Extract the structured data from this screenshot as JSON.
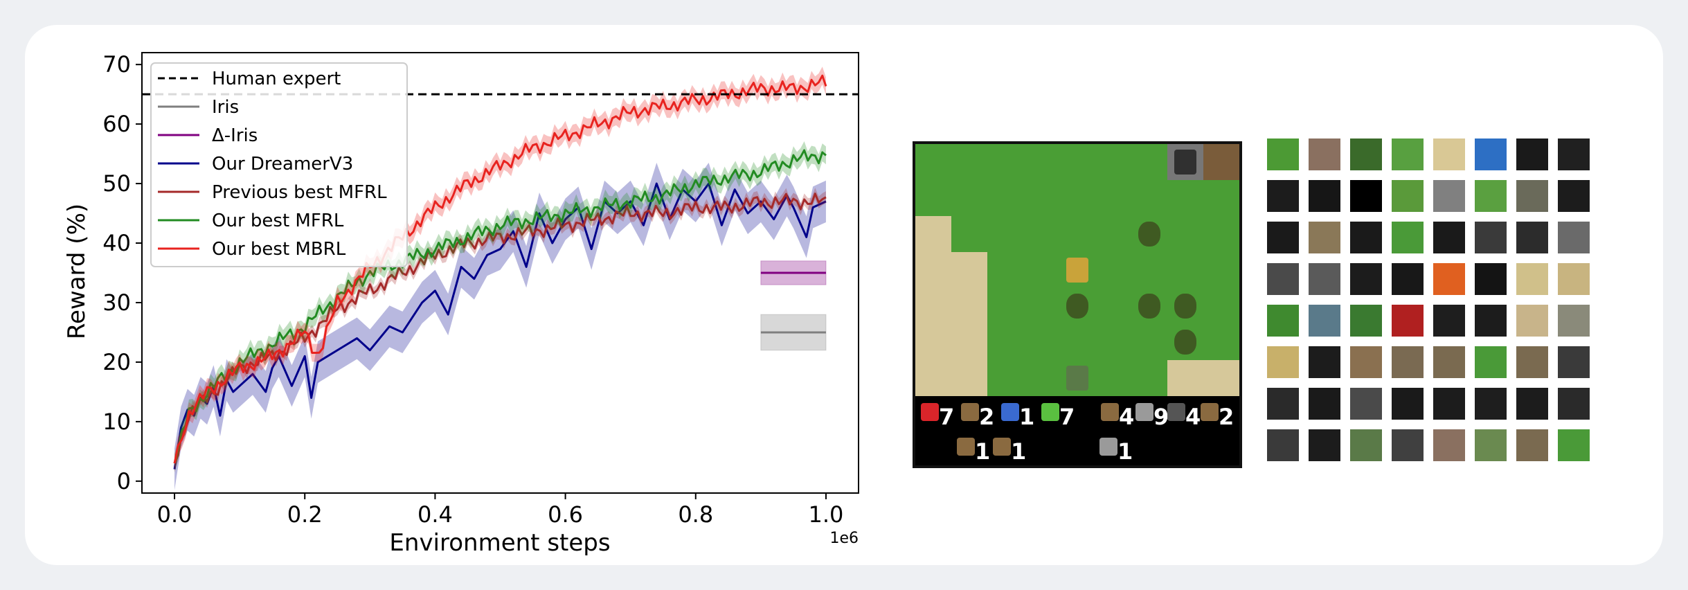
{
  "chart_data": {
    "type": "line",
    "title": "",
    "xlabel": "Environment steps",
    "ylabel": "Reward (%)",
    "x_multiplier_label": "1e6",
    "xlim": [
      -0.05,
      1.05
    ],
    "ylim": [
      -2,
      72
    ],
    "xticks": [
      0.0,
      0.2,
      0.4,
      0.6,
      0.8,
      1.0
    ],
    "xtick_labels": [
      "0.0",
      "0.2",
      "0.4",
      "0.6",
      "0.8",
      "1.0"
    ],
    "yticks": [
      0,
      10,
      20,
      30,
      40,
      50,
      60,
      70
    ],
    "ytick_labels": [
      "0",
      "10",
      "20",
      "30",
      "40",
      "50",
      "60",
      "70"
    ],
    "grid": false,
    "legend_position": "top-left",
    "reference_line": {
      "name": "Human expert",
      "y": 65,
      "color": "#000000",
      "style": "dashed"
    },
    "series": [
      {
        "name": "Iris",
        "kind": "band",
        "color": "#7f7f7f",
        "x_range": [
          0.9,
          1.0
        ],
        "value": 25,
        "band": [
          22,
          28
        ]
      },
      {
        "name": "Δ-Iris",
        "kind": "band",
        "color": "#800080",
        "x_range": [
          0.9,
          1.0
        ],
        "value": 35,
        "band": [
          33,
          37
        ]
      },
      {
        "name": "Our DreamerV3",
        "kind": "line",
        "color": "#00008b",
        "band_width": 3.5,
        "x": [
          0,
          0.01,
          0.02,
          0.03,
          0.04,
          0.05,
          0.06,
          0.07,
          0.08,
          0.09,
          0.1,
          0.12,
          0.14,
          0.15,
          0.16,
          0.18,
          0.2,
          0.21,
          0.22,
          0.25,
          0.28,
          0.3,
          0.33,
          0.35,
          0.38,
          0.4,
          0.42,
          0.44,
          0.46,
          0.48,
          0.5,
          0.52,
          0.54,
          0.56,
          0.58,
          0.6,
          0.62,
          0.64,
          0.66,
          0.68,
          0.7,
          0.72,
          0.74,
          0.76,
          0.78,
          0.8,
          0.82,
          0.84,
          0.86,
          0.88,
          0.9,
          0.92,
          0.94,
          0.95,
          0.97,
          0.98,
          1.0
        ],
        "y": [
          2,
          9,
          12,
          11,
          14,
          13,
          16,
          11,
          17,
          15,
          16,
          18,
          15,
          19,
          21,
          16,
          21,
          14,
          20,
          22,
          24,
          22,
          26,
          25,
          30,
          32,
          28,
          36,
          34,
          38,
          39,
          42,
          36,
          45,
          40,
          44,
          46,
          39,
          47,
          45,
          47,
          43,
          50,
          44,
          49,
          47,
          50,
          43,
          49,
          45,
          47,
          44,
          48,
          46,
          41,
          46,
          47
        ]
      },
      {
        "name": "Previous best MFRL",
        "kind": "line",
        "color": "#a52a2a",
        "band_width": 1,
        "x": [
          0,
          0.02,
          0.05,
          0.1,
          0.15,
          0.2,
          0.25,
          0.3,
          0.35,
          0.4,
          0.45,
          0.5,
          0.55,
          0.6,
          0.65,
          0.7,
          0.75,
          0.8,
          0.85,
          0.9,
          0.95,
          1.0
        ],
        "y": [
          3,
          11,
          14,
          19,
          21,
          24,
          29,
          32,
          35,
          38,
          40,
          41,
          42,
          43,
          44,
          45,
          45,
          46,
          46,
          47,
          47,
          47
        ]
      },
      {
        "name": "Our best MFRL",
        "kind": "line",
        "color": "#228b22",
        "band_width": 1.5,
        "x": [
          0,
          0.02,
          0.05,
          0.1,
          0.15,
          0.2,
          0.25,
          0.3,
          0.35,
          0.4,
          0.45,
          0.5,
          0.55,
          0.6,
          0.65,
          0.7,
          0.75,
          0.8,
          0.85,
          0.9,
          0.95,
          1.0
        ],
        "y": [
          3,
          11,
          15,
          20,
          23,
          26,
          31,
          35,
          37,
          39,
          41,
          43,
          44,
          45,
          46,
          47,
          48,
          50,
          51,
          52,
          54,
          55
        ]
      },
      {
        "name": "Our best MBRL",
        "kind": "line",
        "color": "#e8231f",
        "band_width": 1.5,
        "x": [
          0,
          0.02,
          0.05,
          0.1,
          0.15,
          0.2,
          0.22,
          0.25,
          0.3,
          0.35,
          0.4,
          0.45,
          0.5,
          0.55,
          0.6,
          0.65,
          0.7,
          0.75,
          0.8,
          0.85,
          0.9,
          0.95,
          1.0
        ],
        "y": [
          3,
          11,
          15,
          19,
          21,
          25,
          21,
          30,
          36,
          41,
          46,
          50,
          53,
          56,
          58,
          60,
          62,
          63,
          64,
          65,
          66,
          66,
          67
        ]
      }
    ]
  },
  "scene": {
    "tile_colors": {
      "grass": "#4a9e35",
      "sand": "#d6c89a",
      "stone": "#777777",
      "dark": "#303030",
      "table": "#7a5c3a",
      "tree": "#3f5a22",
      "player": "#c9a33a",
      "zombie": "#5a7a48"
    },
    "hud": [
      "7",
      "2",
      "1",
      "7",
      "4",
      "9",
      "4",
      "2",
      "1",
      "1",
      "1"
    ]
  },
  "tiles": {
    "colors": [
      "#4c9a34",
      "#8a7060",
      "#3a6a2a",
      "#58a040",
      "#d9c895",
      "#2d6fc4",
      "#1a1a1a",
      "#202020",
      "#1c1c1c",
      "#161616",
      "#000000",
      "#5a9a3a",
      "#808080",
      "#5aa040",
      "#6a6a5a",
      "#1c1c1c",
      "#1a1a1a",
      "#8a7858",
      "#1a1a1a",
      "#4a9a38",
      "#1a1a1a",
      "#3a3a3a",
      "#2c2c2c",
      "#6a6a6a",
      "#4a4a4a",
      "#5a5a5a",
      "#1c1c1c",
      "#181818",
      "#e06020",
      "#141414",
      "#d0c08a",
      "#c8b480",
      "#3f8a2f",
      "#5a7a8a",
      "#3a7a30",
      "#b02020",
      "#1e1e1e",
      "#1c1c1c",
      "#c8b48a",
      "#8a8a7a",
      "#c8b06a",
      "#1c1c1c",
      "#8a7050",
      "#7a6a52",
      "#7a6a50",
      "#4a9a38",
      "#7a6a50",
      "#3a3a3a",
      "#2a2a2a",
      "#1a1a1a",
      "#4a4a4a",
      "#1a1a1a",
      "#1c1c1c",
      "#1e1e1e",
      "#1c1c1c",
      "#2a2a2a",
      "#3a3a3a",
      "#1c1c1c",
      "#5a7a48",
      "#404040",
      "#8a7060",
      "#6a8a50",
      "#7a6a50",
      "#4a9a38"
    ]
  }
}
